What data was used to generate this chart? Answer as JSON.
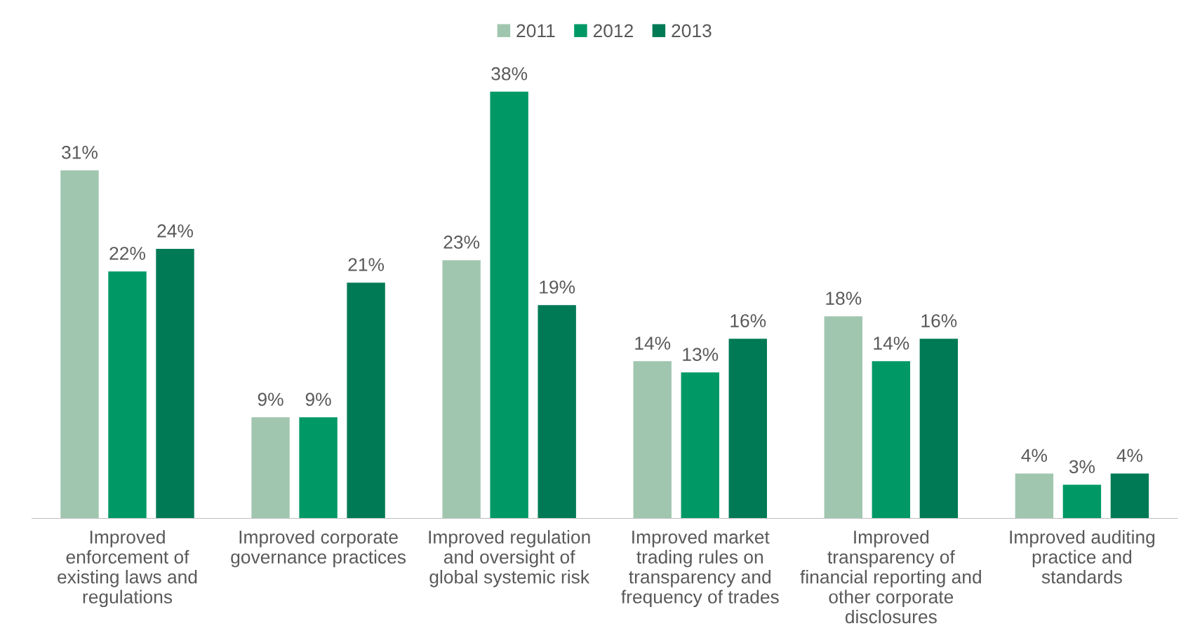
{
  "chart_data": {
    "type": "bar",
    "categories": [
      "Improved\nenforcement of\nexisting laws and\nregulations",
      "Improved corporate\ngovernance practices",
      "Improved regulation\nand oversight of\nglobal systemic risk",
      "Improved market\ntrading rules on\ntransparency and\nfrequency of trades",
      "Improved\ntransparency of\nfinancial reporting and\nother corporate\ndisclosures",
      "Improved auditing\npractice and\nstandards"
    ],
    "series": [
      {
        "name": "2011",
        "color": "#a1c6b0",
        "values": [
          31,
          9,
          23,
          14,
          18,
          4
        ],
        "value_labels": [
          "31%",
          "9%",
          "23%",
          "14%",
          "18%",
          "4%"
        ]
      },
      {
        "name": "2012",
        "color": "#009966",
        "values": [
          22,
          9,
          38,
          13,
          14,
          3
        ],
        "value_labels": [
          "22%",
          "9%",
          "38%",
          "13%",
          "14%",
          "3%"
        ]
      },
      {
        "name": "2013",
        "color": "#007a55",
        "values": [
          24,
          21,
          19,
          16,
          16,
          4
        ],
        "value_labels": [
          "24%",
          "21%",
          "19%",
          "16%",
          "16%",
          "4%"
        ]
      }
    ],
    "legend": "top",
    "grid": false
  }
}
